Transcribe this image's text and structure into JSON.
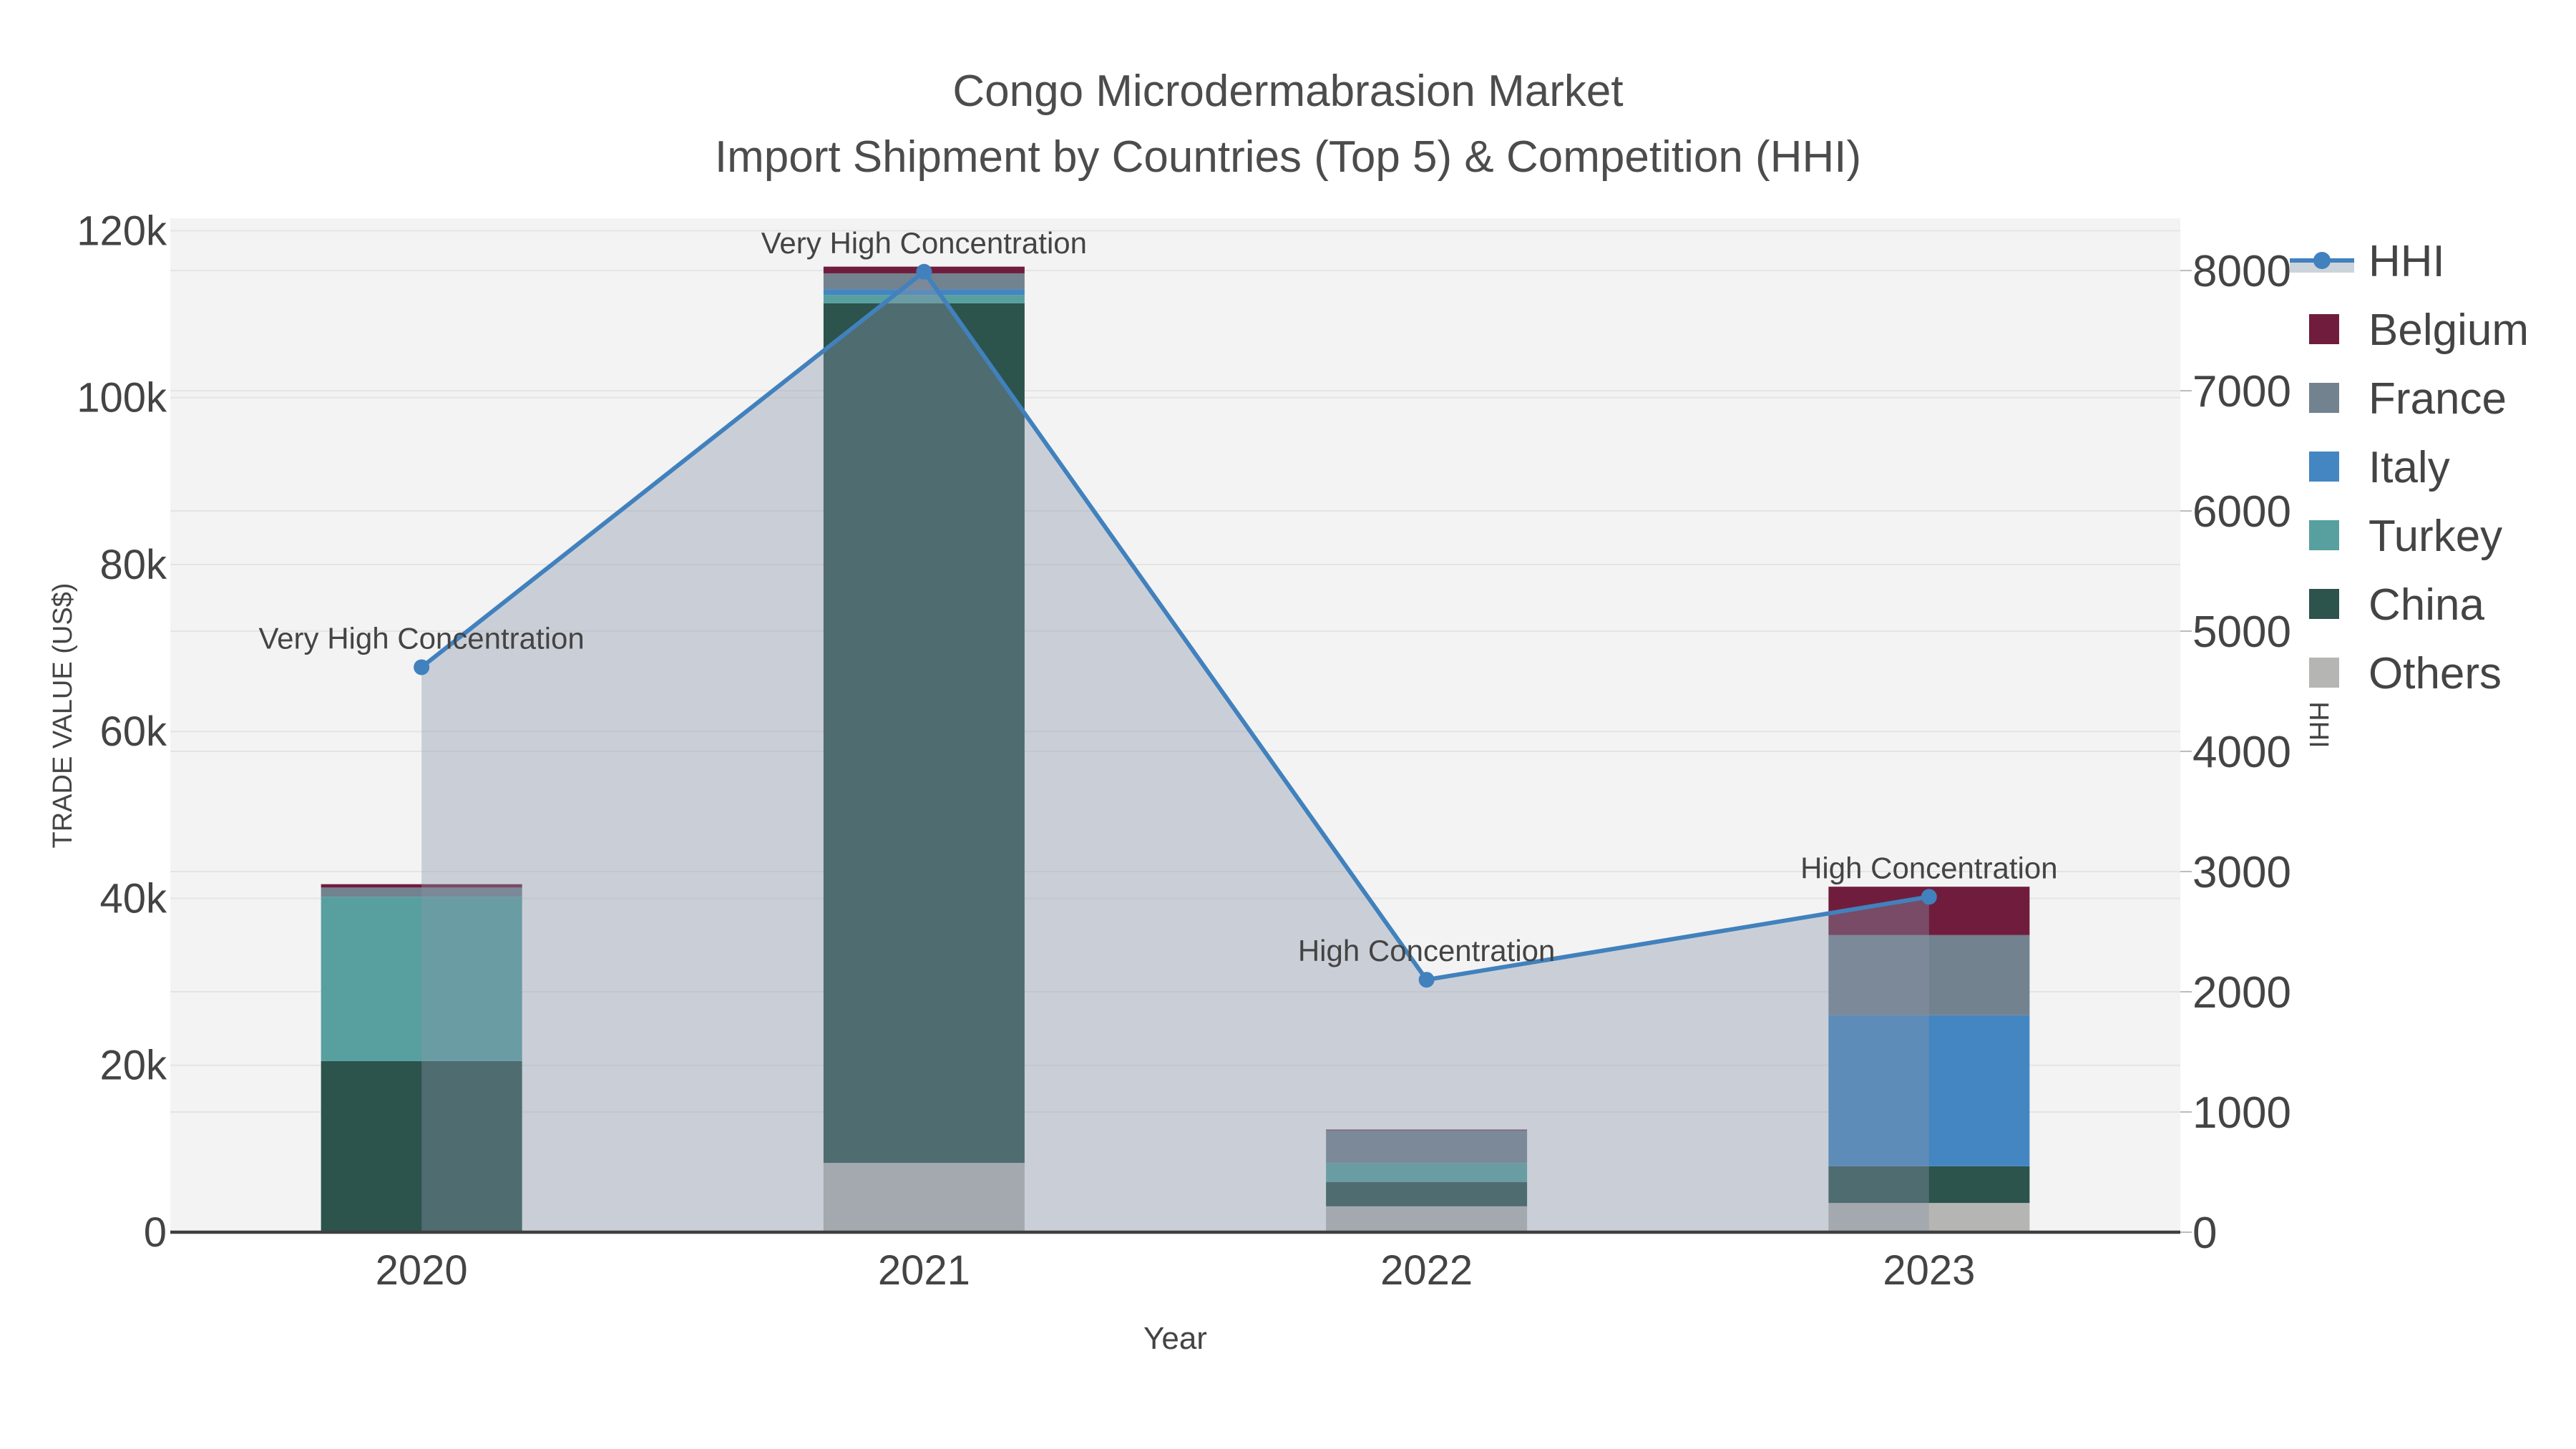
{
  "title": {
    "line1": "Congo Microdermabrasion Market",
    "line2": "Import Shipment by Countries (Top 5) & Competition (HHI)"
  },
  "chart_data": {
    "type": "stacked-bar+line-combo",
    "x": {
      "title": "Year",
      "categories": [
        "2020",
        "2021",
        "2022",
        "2023"
      ]
    },
    "y_left": {
      "title": "TRADE VALUE (US$)",
      "range": [
        0,
        121500
      ],
      "tick_values": [
        0,
        20000,
        40000,
        60000,
        80000,
        100000,
        120000
      ],
      "tick_labels": [
        "0",
        "20k",
        "40k",
        "60k",
        "80k",
        "100k",
        "120k"
      ]
    },
    "y_right": {
      "title": "HHI",
      "range": [
        0,
        8435
      ],
      "tick_values": [
        0,
        1000,
        2000,
        3000,
        4000,
        5000,
        6000,
        7000,
        8000
      ],
      "tick_labels": [
        "0",
        "1000",
        "2000",
        "3000",
        "4000",
        "5000",
        "6000",
        "7000",
        "8000"
      ]
    },
    "bar_series": [
      {
        "name": "Others",
        "color": "#b5b5b4",
        "values": [
          0,
          8300,
          3100,
          3500
        ]
      },
      {
        "name": "China",
        "color": "#2c534c",
        "values": [
          20500,
          103000,
          2900,
          4400
        ]
      },
      {
        "name": "Turkey",
        "color": "#57a09f",
        "values": [
          19700,
          1000,
          2300,
          0
        ]
      },
      {
        "name": "Italy",
        "color": "#4486c1",
        "values": [
          0,
          700,
          0,
          18100
        ]
      },
      {
        "name": "France",
        "color": "#73828f",
        "values": [
          1100,
          1900,
          3900,
          9600
        ]
      },
      {
        "name": "Belgium",
        "color": "#701d3d",
        "values": [
          400,
          800,
          100,
          5800
        ]
      }
    ],
    "line_series": {
      "name": "HHI",
      "axis": "right",
      "color": "#4181bd",
      "values": [
        4700,
        7990,
        2100,
        2790
      ],
      "area_fill": "rgba(137,151,172,0.38)",
      "area_legend_color": "#cdd3da"
    },
    "annotations": [
      {
        "category": "2020",
        "text": "Very High Concentration"
      },
      {
        "category": "2021",
        "text": "Very High Concentration"
      },
      {
        "category": "2022",
        "text": "High Concentration"
      },
      {
        "category": "2023",
        "text": "High Concentration"
      }
    ],
    "legend_order": [
      "HHI",
      "Belgium",
      "France",
      "Italy",
      "Turkey",
      "China",
      "Others"
    ]
  },
  "colors": {
    "plot_background": "#f3f3f3",
    "gridline": "#e4e4e6",
    "axis_line": "#3f3f3f",
    "tick_text": "#444444",
    "title_text": "#4c4c4c",
    "annotation_text": "#000000"
  }
}
